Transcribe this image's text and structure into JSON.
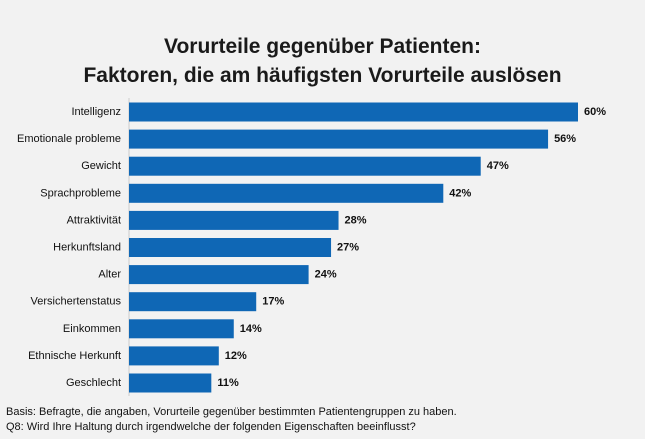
{
  "title_line1": "Vorurteile gegenüber Patienten:",
  "title_line2": "Faktoren, die am häufigsten Vorurteile auslösen",
  "footer_line1": "Basis: Befragte, die angaben, Vorurteile gegenüber bestimmten Patientengruppen zu haben.",
  "footer_line2": "Q8: Wird Ihre Haltung durch irgendwelche der folgenden Eigenschaften beeinflusst?",
  "bar_color": "#0f67b5",
  "chart_data": {
    "type": "bar",
    "orientation": "horizontal",
    "categories": [
      "Intelligenz",
      "Emotionale probleme",
      "Gewicht",
      "Sprachprobleme",
      "Attraktivität",
      "Herkunftsland",
      "Alter",
      "Versichertenstatus",
      "Einkommen",
      "Ethnische Herkunft",
      "Geschlecht"
    ],
    "values": [
      60,
      56,
      47,
      42,
      28,
      27,
      24,
      17,
      14,
      12,
      11
    ],
    "value_labels": [
      "60%",
      "56%",
      "47%",
      "42%",
      "28%",
      "27%",
      "24%",
      "17%",
      "14%",
      "12%",
      "11%"
    ],
    "title": "Vorurteile gegenüber Patienten: Faktoren, die am häufigsten Vorurteile auslösen",
    "xlim": [
      0,
      60
    ],
    "grid": false,
    "legend": "none"
  }
}
